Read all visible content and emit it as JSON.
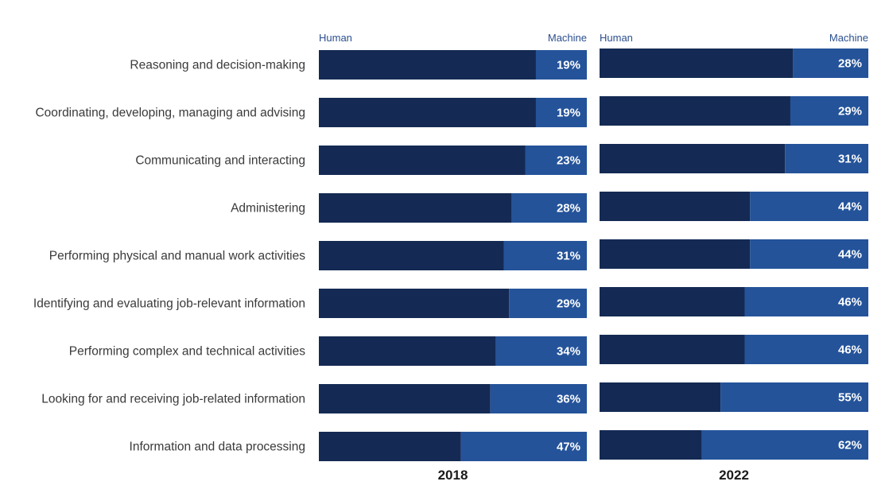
{
  "colors": {
    "human": "#142a54",
    "machine": "#24539a",
    "header_text": "#2b4f8f",
    "category_text": "#3a3a3a"
  },
  "chart_data": {
    "type": "bar",
    "orientation": "horizontal",
    "stacked": true,
    "normalized_to_percent": true,
    "categories": [
      "Reasoning and decision-making",
      "Coordinating, developing, managing and advising",
      "Communicating and interacting",
      "Administering",
      "Performing physical and manual work activities",
      "Identifying and evaluating job-relevant information",
      "Performing complex and technical activities",
      "Looking for and receiving job-related information",
      "Information and data processing"
    ],
    "series_labels": [
      "Human",
      "Machine"
    ],
    "panels": [
      {
        "year": "2018",
        "machine_pct": [
          19,
          19,
          23,
          28,
          31,
          29,
          34,
          36,
          47
        ]
      },
      {
        "year": "2022",
        "machine_pct": [
          28,
          29,
          31,
          44,
          44,
          46,
          46,
          55,
          62
        ]
      }
    ],
    "value_suffix": "%",
    "grid": false
  }
}
